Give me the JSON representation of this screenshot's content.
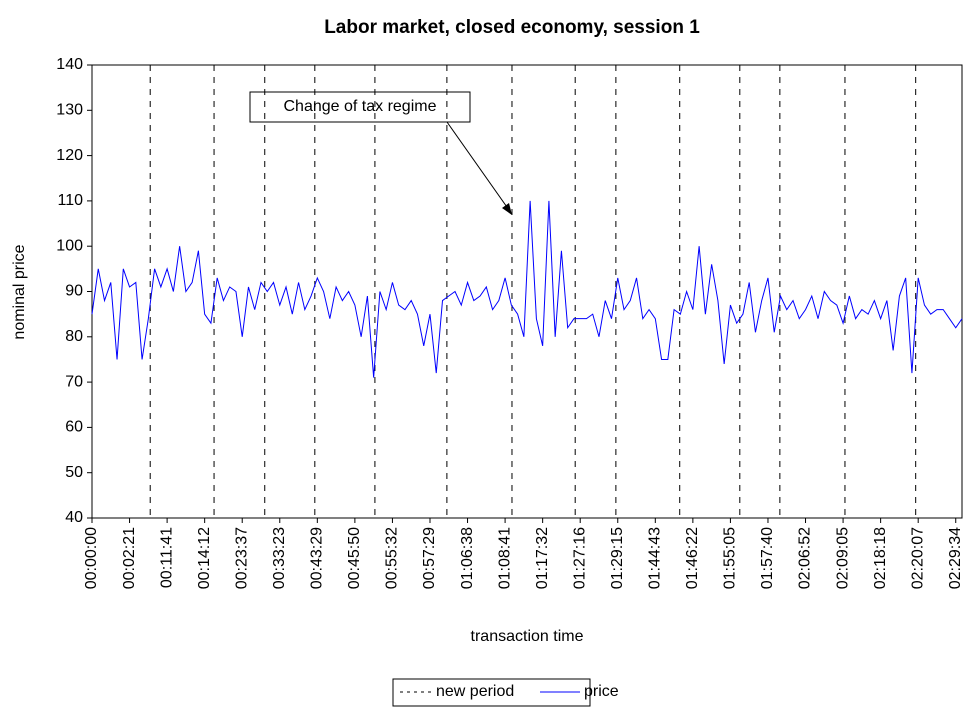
{
  "chart_data": {
    "type": "line",
    "title": "Labor market, closed economy, session 1",
    "y_label": "nominal price",
    "x_label": "transaction time",
    "annotation": "Change of tax regime",
    "categories": [
      "00:00:00",
      null,
      null,
      null,
      null,
      null,
      "00:02:21",
      null,
      null,
      null,
      null,
      null,
      "00:11:41",
      null,
      null,
      null,
      null,
      null,
      "00:14:12",
      null,
      null,
      null,
      null,
      null,
      "00:23:37",
      null,
      null,
      null,
      null,
      null,
      "00:33:23",
      null,
      null,
      null,
      null,
      null,
      "00:43:29",
      null,
      null,
      null,
      null,
      null,
      "00:45:50",
      null,
      null,
      null,
      null,
      null,
      "00:55:32",
      null,
      null,
      null,
      null,
      null,
      "00:57:29",
      null,
      null,
      null,
      null,
      null,
      "01:06:38",
      null,
      null,
      null,
      null,
      null,
      "01:08:41",
      null,
      null,
      null,
      null,
      null,
      "01:17:32",
      null,
      null,
      null,
      null,
      null,
      "01:27:16",
      null,
      null,
      null,
      null,
      null,
      "01:29:15",
      null,
      null,
      null,
      null,
      null,
      "01:44:43",
      null,
      null,
      null,
      null,
      null,
      "01:46:22",
      null,
      null,
      null,
      null,
      null,
      "01:55:05",
      null,
      null,
      null,
      null,
      null,
      "01:57:40",
      null,
      null,
      null,
      null,
      null,
      "02:06:52",
      null,
      null,
      null,
      null,
      null,
      "02:09:05",
      null,
      null,
      null,
      null,
      null,
      "02:18:18",
      null,
      null,
      null,
      null,
      null,
      "02:20:07",
      null,
      null,
      null,
      null,
      null,
      "02:29:34",
      null
    ],
    "series": [
      {
        "name": "price",
        "color": "#0000ff",
        "values": [
          85,
          95,
          88,
          92,
          75,
          95,
          91,
          92,
          75,
          84,
          95,
          91,
          95,
          90,
          100,
          90,
          92,
          99,
          85,
          83,
          93,
          88,
          91,
          90,
          80,
          91,
          86,
          92,
          90,
          92,
          87,
          91,
          85,
          92,
          86,
          89,
          93,
          90,
          84,
          91,
          88,
          90,
          87,
          80,
          89,
          71,
          90,
          86,
          92,
          87,
          86,
          88,
          85,
          78,
          85,
          72,
          88,
          89,
          90,
          87,
          92,
          88,
          89,
          91,
          86,
          88,
          93,
          87,
          85,
          80,
          110,
          84,
          78,
          110,
          80,
          99,
          82,
          84,
          84,
          84,
          85,
          80,
          88,
          84,
          93,
          86,
          88,
          93,
          84,
          86,
          84,
          75,
          75,
          86,
          85,
          90,
          86,
          100,
          85,
          96,
          88,
          74,
          87,
          83,
          85,
          92,
          81,
          88,
          93,
          81,
          89,
          86,
          88,
          84,
          86,
          89,
          84,
          90,
          88,
          87,
          83,
          89,
          84,
          86,
          85,
          88,
          84,
          88,
          77,
          89,
          93,
          72,
          93,
          87,
          85,
          86,
          86,
          84,
          82,
          84
        ]
      }
    ],
    "new_period": {
      "name": "new period",
      "color": "#000000",
      "positions": [
        9.3,
        19.5,
        27.6,
        35.6,
        45.2,
        56.7,
        67.1,
        77.2,
        83.7,
        93.9,
        103.5,
        109.9,
        120.3,
        131.6
      ]
    },
    "ylim": [
      40,
      140
    ],
    "yticks": [
      40,
      50,
      60,
      70,
      80,
      90,
      100,
      110,
      120,
      130,
      140
    ]
  }
}
